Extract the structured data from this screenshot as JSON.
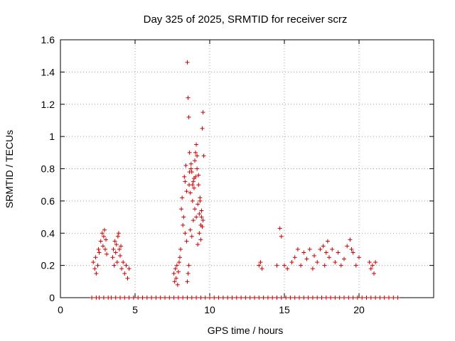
{
  "chart_data": {
    "type": "scatter",
    "title": "Day 325 of 2025, SRMTID for receiver scrz",
    "xlabel": "GPS time / hours",
    "ylabel": "SRMTID / TECUs",
    "xlim": [
      0,
      25
    ],
    "ylim": [
      0,
      1.6
    ],
    "x_ticks": [
      {
        "value": 0,
        "label": "0"
      },
      {
        "value": 5,
        "label": "5"
      },
      {
        "value": 10,
        "label": "10"
      },
      {
        "value": 15,
        "label": "15"
      },
      {
        "value": 20,
        "label": "20"
      }
    ],
    "y_ticks": [
      {
        "value": 0,
        "label": "0"
      },
      {
        "value": 0.2,
        "label": "0.2"
      },
      {
        "value": 0.4,
        "label": "0.4"
      },
      {
        "value": 0.6,
        "label": "0.6"
      },
      {
        "value": 0.8,
        "label": "0.8"
      },
      {
        "value": 1.0,
        "label": "1"
      },
      {
        "value": 1.2,
        "label": "1.2"
      },
      {
        "value": 1.4,
        "label": "1.4"
      },
      {
        "value": 1.6,
        "label": "1.6"
      }
    ],
    "grid": true,
    "marker": "+",
    "colors": {
      "series": "#cc0000",
      "grid": "#a0a0a0",
      "axes": "#000000"
    },
    "series": [
      {
        "name": "SRMTID",
        "x": [
          2.2,
          2.3,
          2.35,
          2.4,
          2.5,
          2.55,
          2.6,
          2.7,
          2.8,
          2.85,
          2.9,
          2.95,
          3.0,
          3.05,
          3.1,
          3.5,
          3.55,
          3.6,
          3.65,
          3.7,
          3.75,
          3.8,
          3.85,
          3.9,
          3.95,
          4.0,
          4.05,
          4.1,
          4.2,
          4.3,
          4.4,
          4.5,
          4.6,
          7.6,
          7.65,
          7.7,
          7.75,
          7.8,
          7.85,
          7.9,
          7.95,
          8.0,
          8.05,
          8.1,
          8.15,
          8.2,
          8.25,
          8.3,
          8.35,
          8.4,
          8.45,
          8.5,
          8.55,
          8.6,
          8.62,
          8.65,
          8.7,
          8.75,
          8.8,
          8.85,
          8.9,
          8.95,
          9.0,
          9.05,
          9.1,
          9.15,
          9.2,
          9.25,
          9.3,
          9.35,
          9.4,
          9.45,
          9.5,
          9.55,
          9.6,
          8.5,
          8.55,
          8.6,
          8.7,
          8.8,
          8.9,
          9.0,
          9.1,
          9.2,
          9.3,
          9.4,
          9.5,
          8.35,
          8.45,
          8.65,
          8.75,
          8.85,
          8.95,
          9.05,
          9.15,
          9.25,
          9.35,
          9.45,
          9.55,
          13.3,
          13.4,
          13.5,
          14.5,
          14.7,
          14.8,
          15.0,
          15.2,
          15.5,
          15.7,
          15.9,
          16.1,
          16.3,
          16.5,
          16.7,
          16.9,
          17.0,
          17.2,
          17.4,
          17.6,
          17.7,
          17.8,
          17.9,
          18.0,
          18.2,
          18.4,
          18.6,
          18.8,
          19.0,
          19.2,
          19.4,
          19.5,
          19.6,
          19.8,
          20.0,
          20.7,
          20.8,
          20.9,
          21.0,
          21.1,
          2.1,
          2.4,
          2.6,
          2.9,
          3.2,
          3.4,
          3.7,
          4.0,
          4.3,
          4.6,
          4.9,
          5.2,
          5.5,
          5.8,
          6.1,
          6.4,
          6.7,
          7.0,
          7.3,
          7.6,
          7.9,
          8.2,
          8.5,
          8.8,
          9.1,
          9.4,
          9.7,
          10.0,
          10.3,
          10.6,
          10.9,
          11.2,
          11.5,
          11.8,
          12.1,
          12.4,
          12.7,
          13.0,
          13.3,
          13.6,
          13.9,
          14.2,
          14.5,
          14.8,
          15.1,
          15.4,
          15.7,
          16.0,
          16.3,
          16.6,
          16.9,
          17.2,
          17.5,
          17.8,
          18.1,
          18.4,
          18.7,
          19.0,
          19.3,
          19.6,
          19.9,
          20.2,
          20.5,
          20.8,
          21.1,
          21.4,
          21.7,
          22.0,
          22.3,
          22.6
        ],
        "y": [
          0.22,
          0.18,
          0.25,
          0.15,
          0.2,
          0.3,
          0.28,
          0.35,
          0.4,
          0.32,
          0.38,
          0.42,
          0.3,
          0.36,
          0.27,
          0.25,
          0.3,
          0.2,
          0.35,
          0.28,
          0.33,
          0.22,
          0.38,
          0.4,
          0.3,
          0.26,
          0.32,
          0.18,
          0.22,
          0.15,
          0.2,
          0.12,
          0.18,
          0.15,
          0.1,
          0.18,
          0.12,
          0.2,
          0.08,
          0.16,
          0.22,
          0.25,
          0.3,
          0.55,
          0.62,
          0.45,
          0.5,
          0.75,
          0.4,
          0.82,
          0.35,
          1.46,
          1.24,
          1.12,
          0.7,
          0.9,
          0.65,
          0.8,
          0.78,
          0.6,
          0.72,
          0.68,
          0.85,
          0.75,
          0.95,
          0.88,
          0.58,
          0.7,
          0.52,
          0.62,
          0.45,
          0.5,
          1.05,
          1.15,
          0.88,
          0.1,
          0.15,
          0.2,
          0.42,
          0.38,
          0.48,
          0.55,
          0.5,
          0.33,
          0.4,
          0.36,
          0.44,
          0.72,
          0.66,
          0.78,
          0.83,
          0.7,
          0.74,
          0.9,
          0.8,
          0.76,
          0.6,
          0.54,
          0.48,
          0.2,
          0.22,
          0.18,
          0.2,
          0.43,
          0.38,
          0.2,
          0.18,
          0.22,
          0.25,
          0.3,
          0.2,
          0.28,
          0.24,
          0.3,
          0.18,
          0.26,
          0.22,
          0.3,
          0.32,
          0.2,
          0.28,
          0.35,
          0.25,
          0.3,
          0.22,
          0.28,
          0.2,
          0.24,
          0.32,
          0.36,
          0.3,
          0.28,
          0.2,
          0.25,
          0.22,
          0.18,
          0.2,
          0.15,
          0.22,
          0,
          0,
          0,
          0,
          0,
          0,
          0,
          0,
          0,
          0,
          0,
          0,
          0,
          0,
          0,
          0,
          0,
          0,
          0,
          0,
          0,
          0,
          0,
          0,
          0,
          0,
          0,
          0,
          0,
          0,
          0,
          0,
          0,
          0,
          0,
          0,
          0,
          0,
          0,
          0,
          0,
          0,
          0,
          0,
          0,
          0,
          0,
          0,
          0,
          0,
          0,
          0,
          0,
          0,
          0,
          0,
          0,
          0,
          0,
          0,
          0,
          0,
          0,
          0,
          0,
          0,
          0,
          0,
          0,
          0
        ]
      }
    ]
  }
}
